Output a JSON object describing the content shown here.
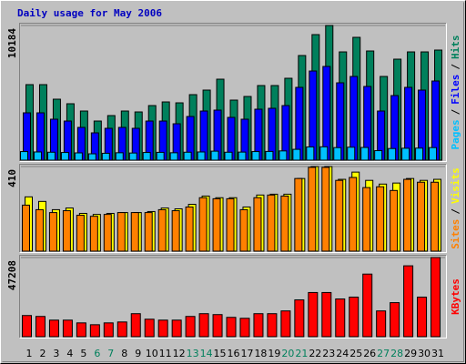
{
  "chart_data": [
    {
      "type": "bar",
      "title": "Daily usage for May 2006",
      "legend_separator": "/",
      "ylim": [
        0,
        10184
      ],
      "yticks": [
        10184
      ],
      "series": [
        {
          "name": "Pages",
          "color": "#00c0ff",
          "values": [
            650,
            620,
            600,
            580,
            550,
            480,
            520,
            560,
            540,
            580,
            590,
            560,
            600,
            620,
            680,
            600,
            610,
            650,
            660,
            700,
            820,
            1000,
            1010,
            950,
            980,
            960,
            720,
            880,
            900,
            910,
            950
          ]
        },
        {
          "name": "Files",
          "color": "#0000ff",
          "values": [
            3578,
            3578,
            3096,
            2958,
            2477,
            2064,
            2408,
            2477,
            2408,
            2958,
            2958,
            2752,
            3302,
            3715,
            3784,
            3234,
            3096,
            3853,
            3922,
            4128,
            5504,
            6742,
            7086,
            5848,
            6330,
            5573,
            3715,
            4885,
            5504,
            5298,
            5986
          ]
        },
        {
          "name": "Hits",
          "color": "#00805c",
          "values": [
            5711,
            5711,
            4610,
            4266,
            3715,
            2958,
            3371,
            3715,
            3646,
            4128,
            4403,
            4334,
            4954,
            5298,
            6123,
            4541,
            4816,
            5642,
            5642,
            6192,
            7912,
            9494,
            10184,
            8187,
            9288,
            8256,
            6330,
            7637,
            8187,
            8187,
            8325
          ]
        }
      ]
    },
    {
      "type": "bar",
      "legend_separator": "/",
      "ylim": [
        0,
        410
      ],
      "yticks": [
        410
      ],
      "series": [
        {
          "name": "Sites",
          "color": "#ff8000",
          "values": [
            223,
            201,
            187,
            196,
            174,
            169,
            178,
            187,
            187,
            187,
            201,
            196,
            214,
            259,
            254,
            254,
            201,
            259,
            272,
            267,
            352,
            406,
            406,
            343,
            357,
            308,
            312,
            294,
            348,
            334,
            334
          ]
        },
        {
          "name": "Visits",
          "color": "#ffff00",
          "values": [
            263,
            241,
            201,
            209,
            183,
            178,
            183,
            187,
            187,
            192,
            209,
            205,
            227,
            267,
            259,
            259,
            214,
            272,
            276,
            276,
            352,
            410,
            410,
            348,
            383,
            343,
            325,
            330,
            352,
            343,
            348
          ]
        }
      ]
    },
    {
      "type": "bar",
      "ylim": [
        0,
        47208
      ],
      "yticks": [
        47208
      ],
      "categories": [
        "1",
        "2",
        "3",
        "4",
        "5",
        "6",
        "7",
        "8",
        "9",
        "10",
        "11",
        "12",
        "13",
        "14",
        "15",
        "16",
        "17",
        "18",
        "19",
        "20",
        "21",
        "22",
        "23",
        "24",
        "25",
        "26",
        "27",
        "28",
        "29",
        "30",
        "31"
      ],
      "category_color": "#000000",
      "weekend_color": "#00805c",
      "weekend_indices": [
        5,
        6,
        12,
        13,
        19,
        20,
        26,
        27
      ],
      "series": [
        {
          "name": "KBytes",
          "color": "#ff0000",
          "values": [
            12627,
            12078,
            9882,
            9882,
            8235,
            7137,
            8235,
            8784,
            13725,
            10431,
            9882,
            9882,
            12078,
            13725,
            13176,
            11529,
            10980,
            13725,
            13725,
            15372,
            21960,
            26352,
            26352,
            22509,
            23607,
            37332,
            15372,
            20313,
            42273,
            23607,
            47208
          ]
        }
      ]
    }
  ]
}
